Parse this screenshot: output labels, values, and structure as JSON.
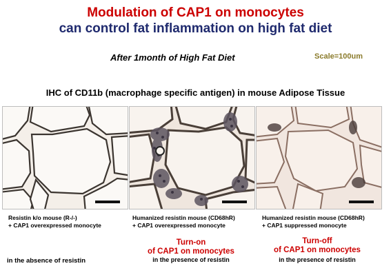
{
  "title": {
    "line1": "Modulation of CAP1 on monocytes",
    "line2": "can control fat inflammation on high fat diet"
  },
  "subtitle": "After 1month of High Fat Diet",
  "scale_note": "Scale=100um",
  "section_heading": "IHC of CD11b (macrophage specific antigen) in mouse Adipose Tissue",
  "panels": [
    {
      "caption_line1": "Resistin k/o mouse (R-/-)",
      "caption_line2": "+ CAP1 overexpressed  monocyte",
      "result_line1": "",
      "result_line2": "",
      "context": "in the absence of resistin"
    },
    {
      "caption_line1": "Humanized resistin mouse (CD68hR)",
      "caption_line2": "+ CAP1 overexpressed monocyte",
      "result_line1": "Turn-on",
      "result_line2": "of CAP1 on monocytes",
      "context": "in the presence of resistin"
    },
    {
      "caption_line1": "Humanized resistin mouse (CD68hR)",
      "caption_line2": "+ CAP1 suppressed monocyte",
      "result_line1": "Turn-off",
      "result_line2": "of CAP1 on monocytes",
      "context": "in the presence of resistin"
    }
  ],
  "colors": {
    "title_red": "#cc0000",
    "title_navy": "#1f2a6e",
    "scale_text": "#8a7a2a"
  }
}
